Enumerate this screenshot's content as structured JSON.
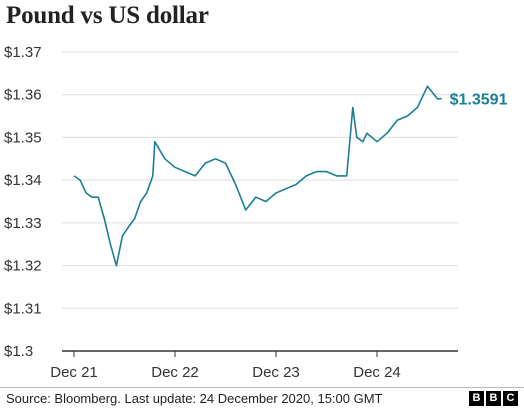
{
  "header": {
    "title": "Pound vs US dollar"
  },
  "footer": {
    "source": "Source: Bloomberg. Last update: 24 December 2020, 15:00 GMT",
    "logo": [
      "B",
      "B",
      "C"
    ]
  },
  "chart_data": {
    "type": "line",
    "title": "Pound vs US dollar",
    "xlabel": "",
    "ylabel": "",
    "x_ticks": [
      "Dec 21",
      "Dec 22",
      "Dec 23",
      "Dec 24"
    ],
    "y_ticks": [
      "$1.3",
      "$1.31",
      "$1.32",
      "$1.33",
      "$1.34",
      "$1.35",
      "$1.36",
      "$1.37"
    ],
    "y_tick_values": [
      1.3,
      1.31,
      1.32,
      1.33,
      1.34,
      1.35,
      1.36,
      1.37
    ],
    "ylim": [
      1.3,
      1.37
    ],
    "xlim": [
      0,
      3.85
    ],
    "grid": "horizontal",
    "line_color": "#1b7f93",
    "annotation": {
      "text": "$1.3591",
      "x": 3.64,
      "y": 1.3591,
      "color": "#1b7f93"
    },
    "series": [
      {
        "x": [
          0.0,
          0.06,
          0.12,
          0.18,
          0.24,
          0.3,
          0.36,
          0.42,
          0.48,
          0.54,
          0.6,
          0.66,
          0.72,
          0.78,
          0.8,
          0.9,
          1.0,
          1.1,
          1.2,
          1.3,
          1.4,
          1.5,
          1.6,
          1.7,
          1.8,
          1.9,
          2.0,
          2.1,
          2.2,
          2.3,
          2.4,
          2.5,
          2.6,
          2.7,
          2.76,
          2.8,
          2.86,
          2.9,
          3.0,
          3.1,
          3.2,
          3.3,
          3.4,
          3.5,
          3.6,
          3.64
        ],
        "y": [
          1.341,
          1.34,
          1.337,
          1.336,
          1.336,
          1.331,
          1.325,
          1.32,
          1.327,
          1.329,
          1.331,
          1.335,
          1.337,
          1.341,
          1.349,
          1.345,
          1.343,
          1.342,
          1.341,
          1.344,
          1.345,
          1.344,
          1.339,
          1.333,
          1.336,
          1.335,
          1.337,
          1.338,
          1.339,
          1.341,
          1.342,
          1.342,
          1.341,
          1.341,
          1.357,
          1.35,
          1.349,
          1.351,
          1.349,
          1.351,
          1.354,
          1.355,
          1.357,
          1.362,
          1.359,
          1.3591
        ]
      }
    ]
  }
}
